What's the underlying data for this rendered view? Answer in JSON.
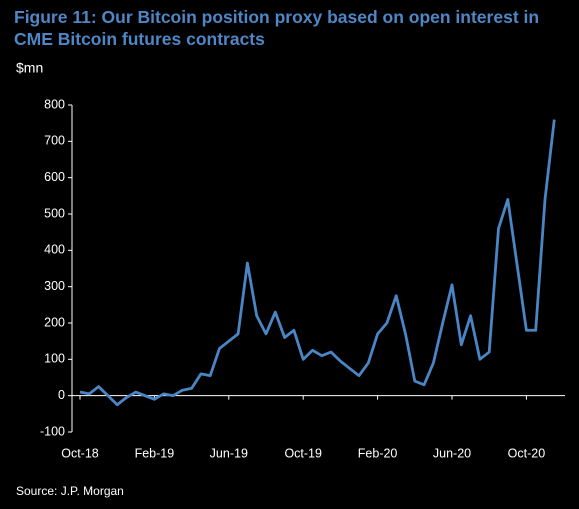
{
  "chart_data": {
    "type": "line",
    "title": "Figure 11: Our Bitcoin position proxy based on open interest in CME Bitcoin futures contracts",
    "y_label": "$mn",
    "source": "Source: J.P. Morgan",
    "categories": [
      "Oct-18",
      null,
      null,
      null,
      null,
      null,
      null,
      null,
      "Feb-19",
      null,
      null,
      null,
      null,
      null,
      null,
      null,
      "Jun-19",
      null,
      null,
      null,
      null,
      null,
      null,
      null,
      "Oct-19",
      null,
      null,
      null,
      null,
      null,
      null,
      null,
      "Feb-20",
      null,
      null,
      null,
      null,
      null,
      null,
      null,
      "Jun-20",
      null,
      null,
      null,
      null,
      null,
      null,
      null,
      "Oct-20",
      null,
      null,
      null
    ],
    "series": [
      {
        "name": "Bitcoin position proxy",
        "color": "#4a86c5",
        "values": [
          10,
          5,
          25,
          0,
          -25,
          -5,
          10,
          0,
          -10,
          5,
          0,
          15,
          20,
          60,
          55,
          130,
          150,
          170,
          365,
          220,
          170,
          230,
          160,
          180,
          100,
          125,
          110,
          120,
          95,
          75,
          55,
          90,
          170,
          200,
          275,
          170,
          40,
          30,
          90,
          200,
          305,
          140,
          220,
          100,
          120,
          460,
          540,
          360,
          180,
          180,
          540,
          760
        ]
      }
    ],
    "ylim": [
      -100,
      800
    ],
    "yticks": [
      -100,
      0,
      100,
      200,
      300,
      400,
      500,
      600,
      700,
      800
    ]
  }
}
